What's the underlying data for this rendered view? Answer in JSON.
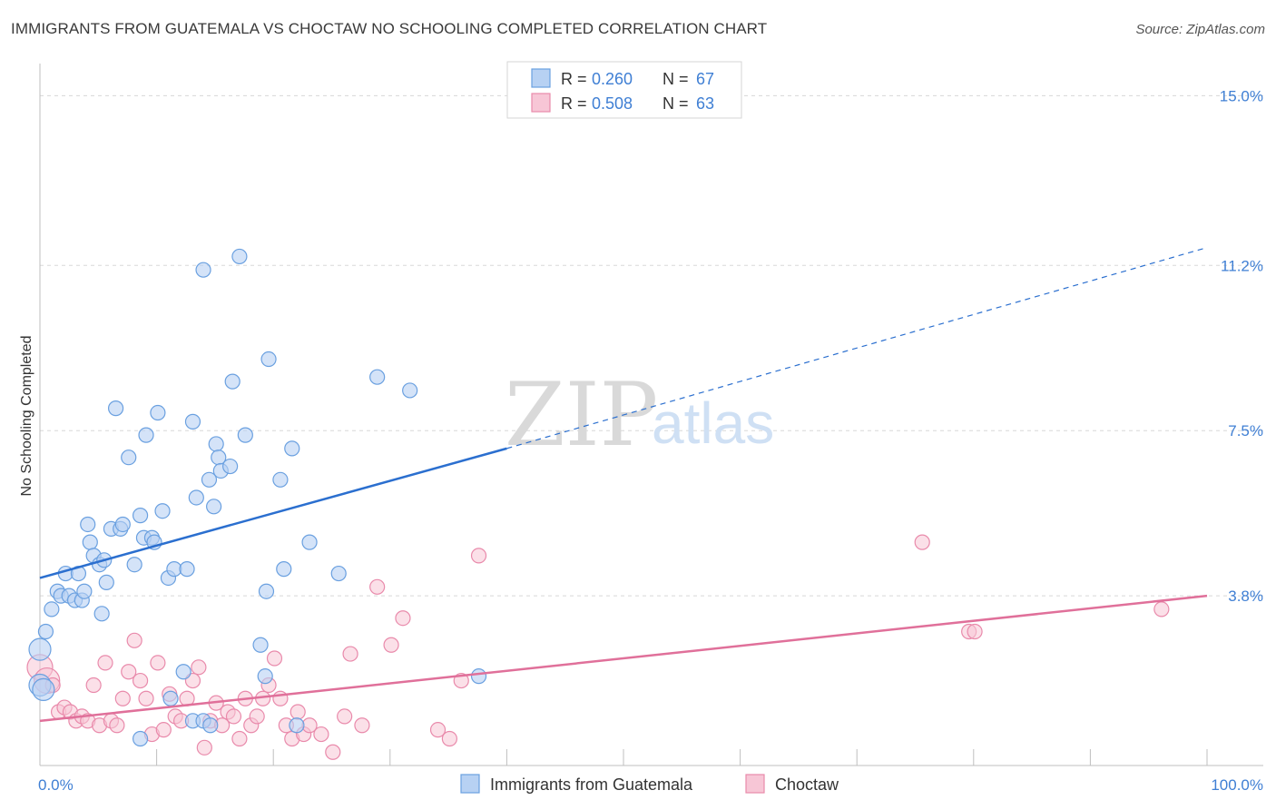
{
  "header": {
    "title": "IMMIGRANTS FROM GUATEMALA VS CHOCTAW NO SCHOOLING COMPLETED CORRELATION CHART",
    "source": "Source: ZipAtlas.com"
  },
  "watermark": {
    "zip": "ZIP",
    "atlas": "atlas"
  },
  "legend": {
    "r_label": "R = ",
    "n_label": "N = ",
    "items": [
      {
        "r": "0.260",
        "n": "67",
        "color": "#6aa0e0",
        "fill": "#b7d1f3"
      },
      {
        "r": "0.508",
        "n": "63",
        "color": "#e98aab",
        "fill": "#f7c6d6"
      }
    ]
  },
  "bottom_legend": {
    "series1": "Immigrants from Guatemala",
    "series2": "Choctaw"
  },
  "colors": {
    "blue_line": "#2b6fcf",
    "pink_line": "#e0709a",
    "blue_point_fill": "#b7d1f3",
    "blue_point_stroke": "#6aa0e0",
    "pink_point_fill": "#f7c6d6",
    "pink_point_stroke": "#e98aab",
    "tick_label": "#3f7fd4",
    "grid": "#d8d8d8"
  },
  "chart_data": {
    "type": "scatter",
    "title": "IMMIGRANTS FROM GUATEMALA VS CHOCTAW NO SCHOOLING COMPLETED CORRELATION CHART",
    "xlabel": "",
    "ylabel": "No Schooling Completed",
    "xlim": [
      0,
      100
    ],
    "ylim": [
      0,
      15.5
    ],
    "x_tick_labels": [
      "0.0%",
      "100.0%"
    ],
    "y_ticks": [
      3.8,
      7.5,
      11.2,
      15.0
    ],
    "y_tick_labels": [
      "3.8%",
      "7.5%",
      "11.2%",
      "15.0%"
    ],
    "grid": true,
    "legend_position": "top-center",
    "series": [
      {
        "name": "Immigrants from Guatemala",
        "R": 0.26,
        "N": 67,
        "trend": {
          "x": [
            0,
            40
          ],
          "y": [
            4.2,
            7.1
          ],
          "dashed_to": [
            100,
            11.6
          ]
        },
        "points": [
          [
            0.0,
            2.6
          ],
          [
            0.0,
            1.8
          ],
          [
            0.5,
            3.0
          ],
          [
            1.0,
            3.5
          ],
          [
            1.5,
            3.9
          ],
          [
            1.8,
            3.8
          ],
          [
            2.2,
            4.3
          ],
          [
            2.5,
            3.8
          ],
          [
            3.0,
            3.7
          ],
          [
            3.3,
            4.3
          ],
          [
            3.6,
            3.7
          ],
          [
            3.8,
            3.9
          ],
          [
            4.1,
            5.4
          ],
          [
            4.3,
            5.0
          ],
          [
            4.6,
            4.7
          ],
          [
            5.1,
            4.5
          ],
          [
            5.5,
            4.6
          ],
          [
            5.7,
            4.1
          ],
          [
            5.3,
            3.4
          ],
          [
            6.1,
            5.3
          ],
          [
            6.5,
            8.0
          ],
          [
            6.9,
            5.3
          ],
          [
            7.1,
            5.4
          ],
          [
            7.6,
            6.9
          ],
          [
            8.1,
            4.5
          ],
          [
            8.6,
            5.6
          ],
          [
            8.9,
            5.1
          ],
          [
            9.1,
            7.4
          ],
          [
            9.6,
            5.1
          ],
          [
            9.8,
            5.0
          ],
          [
            10.1,
            7.9
          ],
          [
            10.5,
            5.7
          ],
          [
            11.0,
            4.2
          ],
          [
            11.5,
            4.4
          ],
          [
            12.6,
            4.4
          ],
          [
            13.1,
            7.7
          ],
          [
            13.4,
            6.0
          ],
          [
            14.0,
            11.1
          ],
          [
            14.5,
            6.4
          ],
          [
            14.9,
            5.8
          ],
          [
            15.1,
            7.2
          ],
          [
            15.3,
            6.9
          ],
          [
            15.5,
            6.6
          ],
          [
            16.3,
            6.7
          ],
          [
            16.5,
            8.6
          ],
          [
            17.1,
            11.4
          ],
          [
            17.6,
            7.4
          ],
          [
            18.9,
            2.7
          ],
          [
            19.3,
            2.0
          ],
          [
            19.4,
            3.9
          ],
          [
            19.6,
            9.1
          ],
          [
            20.6,
            6.4
          ],
          [
            20.9,
            4.4
          ],
          [
            21.6,
            7.1
          ],
          [
            22.0,
            0.9
          ],
          [
            23.1,
            5.0
          ],
          [
            25.6,
            4.3
          ],
          [
            28.9,
            8.7
          ],
          [
            31.7,
            8.4
          ],
          [
            37.6,
            2.0
          ],
          [
            8.6,
            0.6
          ],
          [
            11.2,
            1.5
          ],
          [
            12.3,
            2.1
          ],
          [
            13.1,
            1.0
          ],
          [
            14.0,
            1.0
          ],
          [
            14.6,
            0.9
          ],
          [
            0.3,
            1.7
          ]
        ],
        "sizes_note": "points near origin larger"
      },
      {
        "name": "Choctaw",
        "R": 0.508,
        "N": 63,
        "trend": {
          "x": [
            0,
            100
          ],
          "y": [
            1.0,
            3.8
          ]
        },
        "points": [
          [
            0.0,
            2.2
          ],
          [
            0.6,
            1.9
          ],
          [
            1.1,
            1.8
          ],
          [
            1.6,
            1.2
          ],
          [
            2.1,
            1.3
          ],
          [
            2.6,
            1.2
          ],
          [
            3.1,
            1.0
          ],
          [
            3.6,
            1.1
          ],
          [
            4.1,
            1.0
          ],
          [
            4.6,
            1.8
          ],
          [
            5.1,
            0.9
          ],
          [
            5.6,
            2.3
          ],
          [
            6.1,
            1.0
          ],
          [
            6.6,
            0.9
          ],
          [
            7.1,
            1.5
          ],
          [
            7.6,
            2.1
          ],
          [
            8.1,
            2.8
          ],
          [
            8.6,
            1.9
          ],
          [
            9.1,
            1.5
          ],
          [
            9.6,
            0.7
          ],
          [
            10.1,
            2.3
          ],
          [
            10.6,
            0.8
          ],
          [
            11.1,
            1.6
          ],
          [
            11.6,
            1.1
          ],
          [
            12.1,
            1.0
          ],
          [
            12.6,
            1.5
          ],
          [
            13.1,
            1.9
          ],
          [
            13.6,
            2.2
          ],
          [
            14.1,
            0.4
          ],
          [
            14.6,
            1.0
          ],
          [
            15.1,
            1.4
          ],
          [
            15.6,
            0.9
          ],
          [
            16.1,
            1.2
          ],
          [
            16.6,
            1.1
          ],
          [
            17.1,
            0.6
          ],
          [
            17.6,
            1.5
          ],
          [
            18.1,
            0.9
          ],
          [
            18.6,
            1.1
          ],
          [
            19.1,
            1.5
          ],
          [
            19.6,
            1.8
          ],
          [
            20.1,
            2.4
          ],
          [
            20.6,
            1.5
          ],
          [
            21.1,
            0.9
          ],
          [
            21.6,
            0.6
          ],
          [
            22.1,
            1.2
          ],
          [
            22.6,
            0.7
          ],
          [
            23.1,
            0.9
          ],
          [
            24.1,
            0.7
          ],
          [
            25.1,
            0.3
          ],
          [
            26.1,
            1.1
          ],
          [
            26.6,
            2.5
          ],
          [
            27.6,
            0.9
          ],
          [
            28.9,
            4.0
          ],
          [
            30.1,
            2.7
          ],
          [
            31.1,
            3.3
          ],
          [
            34.1,
            0.8
          ],
          [
            35.1,
            0.6
          ],
          [
            36.1,
            1.9
          ],
          [
            37.6,
            4.7
          ],
          [
            75.6,
            5.0
          ],
          [
            79.6,
            3.0
          ],
          [
            80.1,
            3.0
          ],
          [
            96.1,
            3.5
          ]
        ]
      }
    ]
  }
}
